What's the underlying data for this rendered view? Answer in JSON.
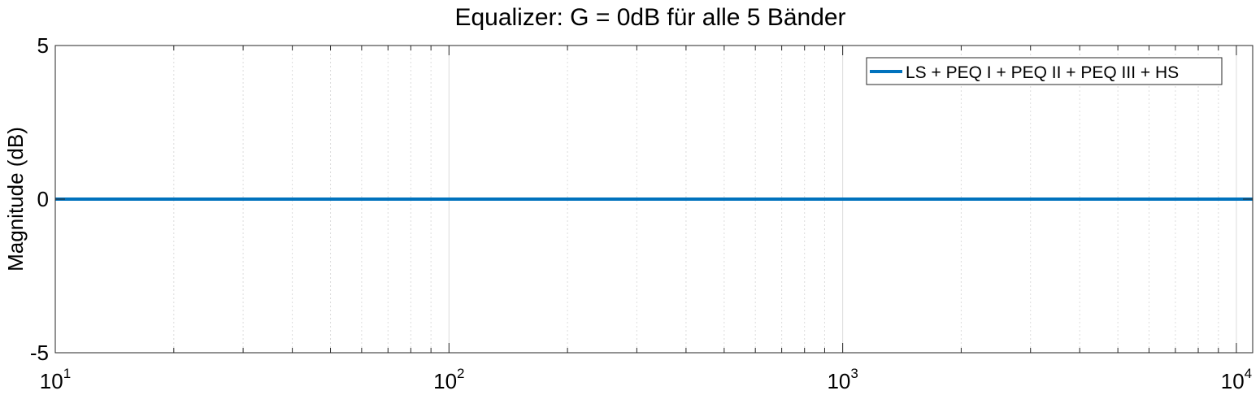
{
  "chart_data": {
    "type": "line",
    "title": "Equalizer: G = 0dB für alle 5 Bänder",
    "xlabel": "",
    "ylabel": "Magnitude (dB)",
    "xscale": "log",
    "xlim": [
      10,
      11000
    ],
    "ylim": [
      -5,
      5
    ],
    "yticks": [
      -5,
      0,
      5
    ],
    "ytick_labels": [
      "-5",
      "0",
      "5"
    ],
    "xticks": [
      10,
      100,
      1000,
      10000
    ],
    "xtick_labels": [
      {
        "base": "10",
        "exp": "1"
      },
      {
        "base": "10",
        "exp": "2"
      },
      {
        "base": "10",
        "exp": "3"
      },
      {
        "base": "10",
        "exp": "4"
      }
    ],
    "grid": true,
    "legend_position": "top-right",
    "series": [
      {
        "name": "LS + PEQ I + PEQ II + PEQ III + HS",
        "color": "#0072BD",
        "x": [
          10,
          100,
          1000,
          10000,
          11000
        ],
        "y": [
          0,
          0,
          0,
          0,
          0
        ]
      }
    ]
  }
}
